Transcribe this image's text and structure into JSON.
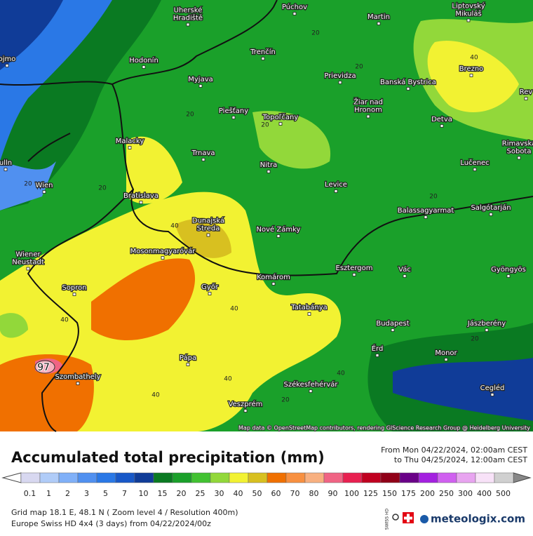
{
  "map": {
    "places": [
      [
        "Uherské",
        "Hradiště"
      ],
      [
        "Púchov"
      ],
      [
        "Martin"
      ],
      [
        "Liptovský",
        "Mikuláš"
      ],
      [
        "ojmo"
      ],
      [
        "Hodonín"
      ],
      [
        "Trenčín"
      ],
      [
        "Brezno"
      ],
      [
        "Myjava"
      ],
      [
        "Prievidza"
      ],
      [
        "Banská Bystrica"
      ],
      [
        "Rev"
      ],
      [
        "Piešťany"
      ],
      [
        "Topoľčany"
      ],
      [
        "Žiar nad",
        "Hronom"
      ],
      [
        "Detva"
      ],
      [
        "Malacky"
      ],
      [
        "Trnava"
      ],
      [
        "Rimavská",
        "Sobota"
      ],
      [
        "ulln"
      ],
      [
        "Nitra"
      ],
      [
        "Lučenec"
      ],
      [
        "Wien"
      ],
      [
        "Levice"
      ],
      [
        "Bratislava"
      ],
      [
        "Balassagyarmat"
      ],
      [
        "Salgótarján"
      ],
      [
        "Dunajská",
        "Streda"
      ],
      [
        "Nové Zámky"
      ],
      [
        "Wiener",
        "Neustadt"
      ],
      [
        "Mosonmagyaróvár"
      ],
      [
        "Esztergom"
      ],
      [
        "Vác"
      ],
      [
        "Gyöngyös"
      ],
      [
        "Komárom"
      ],
      [
        "Sopron"
      ],
      [
        "Győr"
      ],
      [
        "Tatabánya"
      ],
      [
        "Budapest"
      ],
      [
        "Jászberény"
      ],
      [
        "Érd"
      ],
      [
        "Monor"
      ],
      [
        "Szombathely"
      ],
      [
        "Pápa"
      ],
      [
        "Székesfehérvár"
      ],
      [
        "Cegléd"
      ],
      [
        "Veszprém"
      ]
    ],
    "contour_labels": [
      20,
      20,
      20,
      20,
      20,
      20,
      20,
      20,
      20,
      40,
      40,
      40,
      40,
      40,
      40,
      40
    ],
    "max_value": 97,
    "attribution": "Map data © OpenStreetMap contributors, rendering GIScience Research Group @ Heidelberg University"
  },
  "panel": {
    "title": "Accumulated total precipitation (mm)",
    "period_from": "From Mon 04/22/2024, 02:00am CEST",
    "period_to": "to Thu 04/25/2024, 12:00am CEST",
    "scale": {
      "values": [
        0.1,
        1,
        2,
        3,
        5,
        7,
        10,
        15,
        20,
        25,
        30,
        40,
        50,
        60,
        70,
        80,
        90,
        100,
        125,
        150,
        175,
        200,
        250,
        300,
        400,
        500
      ],
      "colors": [
        "#d8d8f0",
        "#b0ccf8",
        "#80b0f8",
        "#5090f0",
        "#2a78e6",
        "#1858c8",
        "#103c98",
        "#0a7a22",
        "#1aa02a",
        "#42c232",
        "#92d83a",
        "#f2f232",
        "#d8c020",
        "#f07000",
        "#f89040",
        "#f8b080",
        "#f06484",
        "#e82050",
        "#c00020",
        "#900018",
        "#6a0088",
        "#a420e0",
        "#d060f0",
        "#e8a4f0",
        "#f8e2f8",
        "#d0d0d0"
      ]
    },
    "grid_info": "Grid map 18.1 E, 48.1 N ( Zoom level 4 / Resolution 400m)",
    "model_info": "Europe Swiss HD 4x4 (3 days) from 04/22/2024/00z",
    "badge": "SWISS HD",
    "brand": "meteologix.com"
  }
}
